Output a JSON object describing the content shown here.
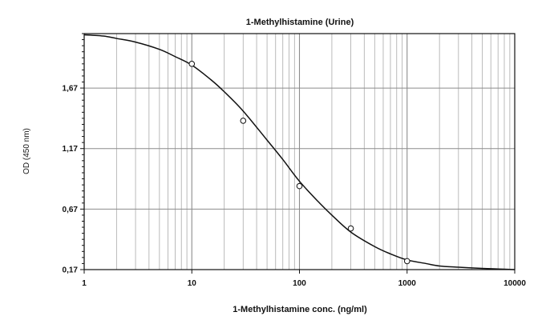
{
  "chart_data": {
    "type": "scatter",
    "title": "1-Methylhistamine (Urine)",
    "xlabel": "1-Methylhistamine conc. (ng/ml)",
    "ylabel": "OD (450 nm)",
    "x_scale": "log",
    "xlim": [
      1,
      10000
    ],
    "ylim": [
      0.17,
      2.12
    ],
    "x_ticks": [
      1,
      10,
      100,
      1000,
      10000
    ],
    "x_tick_labels": [
      "1",
      "10",
      "100",
      "1000",
      "10000"
    ],
    "y_ticks": [
      0.17,
      0.67,
      1.17,
      1.67
    ],
    "y_tick_labels": [
      "0,17",
      "0,67",
      "1,17",
      "1,67"
    ],
    "grid": true,
    "series": [
      {
        "kind": "points",
        "x": [
          10,
          30,
          100,
          300,
          1000
        ],
        "y": [
          1.87,
          1.4,
          0.86,
          0.51,
          0.24
        ]
      },
      {
        "kind": "fit-curve",
        "x": [
          1,
          1.5,
          2,
          3,
          5,
          7,
          10,
          15,
          20,
          30,
          50,
          70,
          100,
          150,
          200,
          300,
          500,
          700,
          1000,
          1500,
          2000,
          3000,
          5000,
          7000,
          10000
        ],
        "y": [
          2.11,
          2.1,
          2.08,
          2.05,
          1.99,
          1.93,
          1.86,
          1.74,
          1.64,
          1.48,
          1.24,
          1.08,
          0.9,
          0.73,
          0.62,
          0.48,
          0.36,
          0.3,
          0.25,
          0.22,
          0.2,
          0.19,
          0.18,
          0.175,
          0.17
        ]
      }
    ]
  }
}
